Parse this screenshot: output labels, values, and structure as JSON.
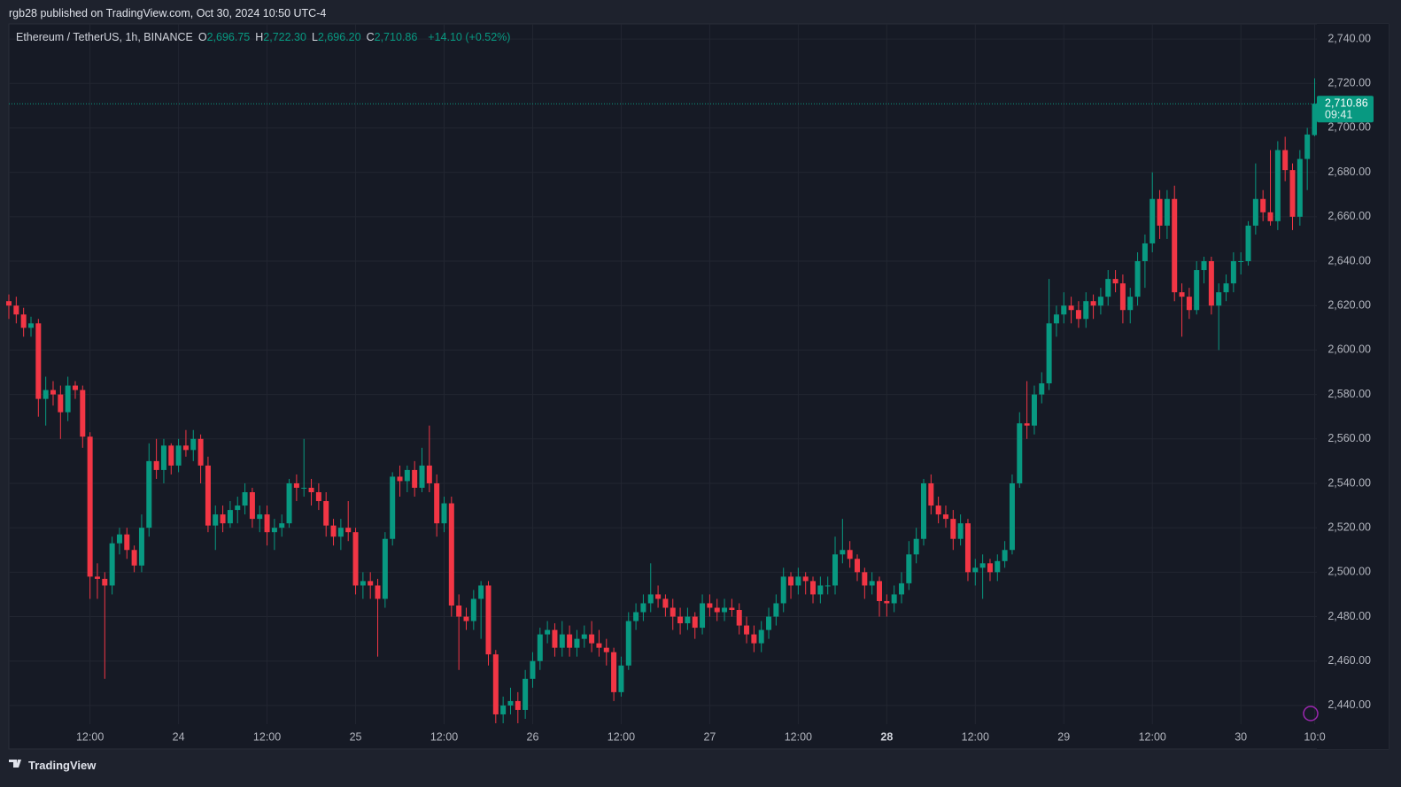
{
  "chart_data": {
    "type": "candlestick",
    "publisher": "rgb28 published on TradingView.com, Oct 30, 2024 10:50 UTC-4",
    "title": "Ethereum / TetherUS, 1h, BINANCE",
    "legend": [
      {
        "key": "O",
        "value": "2,696.75"
      },
      {
        "key": "H",
        "value": "2,722.30"
      },
      {
        "key": "L",
        "value": "2,696.20"
      },
      {
        "key": "C",
        "value": "2,710.86"
      }
    ],
    "change": "+14.10 (+0.52%)",
    "last_price": {
      "value": 2710.86,
      "label": "2,710.86"
    },
    "countdown": "09:41",
    "footer": "TradingView",
    "up_color": "#089981",
    "down_color": "#f23645",
    "grid": true,
    "xlim": [
      0,
      177.3
    ],
    "xticks": [
      {
        "value": 11,
        "label": "12:00"
      },
      {
        "value": 23,
        "label": "24"
      },
      {
        "value": 35,
        "label": "12:00"
      },
      {
        "value": 47,
        "label": "25"
      },
      {
        "value": 59,
        "label": "12:00"
      },
      {
        "value": 71,
        "label": "26"
      },
      {
        "value": 83,
        "label": "12:00"
      },
      {
        "value": 95,
        "label": "27"
      },
      {
        "value": 107,
        "label": "12:00"
      },
      {
        "value": 119,
        "label": "28",
        "bold": true
      },
      {
        "value": 131,
        "label": "12:00"
      },
      {
        "value": 143,
        "label": "29"
      },
      {
        "value": 155,
        "label": "12:00"
      },
      {
        "value": 167,
        "label": "30"
      },
      {
        "value": 177,
        "label": "10:0"
      }
    ],
    "ylim": [
      2431.6,
      2746.8
    ],
    "yticks": [
      {
        "value": 2440,
        "label": "2,440.00"
      },
      {
        "value": 2460,
        "label": "2,460.00"
      },
      {
        "value": 2480,
        "label": "2,480.00"
      },
      {
        "value": 2500,
        "label": "2,500.00"
      },
      {
        "value": 2520,
        "label": "2,520.00"
      },
      {
        "value": 2540,
        "label": "2,540.00"
      },
      {
        "value": 2560,
        "label": "2,560.00"
      },
      {
        "value": 2580,
        "label": "2,580.00"
      },
      {
        "value": 2600,
        "label": "2,600.00"
      },
      {
        "value": 2620,
        "label": "2,620.00"
      },
      {
        "value": 2640,
        "label": "2,640.00"
      },
      {
        "value": 2660,
        "label": "2,660.00"
      },
      {
        "value": 2680,
        "label": "2,680.00"
      },
      {
        "value": 2700,
        "label": "2,700.00"
      },
      {
        "value": 2720,
        "label": "2,720.00"
      },
      {
        "value": 2740,
        "label": "2,740.00"
      }
    ],
    "ohlc": [
      [
        2622,
        2625,
        2614,
        2620
      ],
      [
        2620,
        2624,
        2612,
        2616
      ],
      [
        2616,
        2619,
        2606,
        2610
      ],
      [
        2610,
        2615,
        2606,
        2612
      ],
      [
        2612,
        2614,
        2570,
        2578
      ],
      [
        2578,
        2588,
        2566,
        2582
      ],
      [
        2582,
        2586,
        2575,
        2580
      ],
      [
        2580,
        2584,
        2560,
        2572
      ],
      [
        2572,
        2588,
        2568,
        2584
      ],
      [
        2584,
        2586,
        2578,
        2582
      ],
      [
        2582,
        2584,
        2556,
        2561
      ],
      [
        2561,
        2563,
        2488,
        2498
      ],
      [
        2498,
        2504,
        2488,
        2497
      ],
      [
        2497,
        2500,
        2452,
        2494
      ],
      [
        2494,
        2516,
        2490,
        2513
      ],
      [
        2513,
        2520,
        2508,
        2517
      ],
      [
        2517,
        2520,
        2506,
        2510
      ],
      [
        2510,
        2512,
        2500,
        2503
      ],
      [
        2503,
        2526,
        2500,
        2520
      ],
      [
        2520,
        2558,
        2516,
        2550
      ],
      [
        2550,
        2560,
        2542,
        2546
      ],
      [
        2546,
        2560,
        2540,
        2557
      ],
      [
        2557,
        2558,
        2544,
        2548
      ],
      [
        2548,
        2560,
        2545,
        2557
      ],
      [
        2557,
        2564,
        2552,
        2555
      ],
      [
        2555,
        2564,
        2550,
        2560
      ],
      [
        2560,
        2562,
        2540,
        2548
      ],
      [
        2548,
        2552,
        2518,
        2521
      ],
      [
        2521,
        2530,
        2510,
        2526
      ],
      [
        2526,
        2530,
        2518,
        2522
      ],
      [
        2522,
        2532,
        2520,
        2528
      ],
      [
        2528,
        2534,
        2522,
        2530
      ],
      [
        2530,
        2540,
        2526,
        2536
      ],
      [
        2536,
        2538,
        2520,
        2524
      ],
      [
        2524,
        2530,
        2518,
        2526
      ],
      [
        2526,
        2530,
        2512,
        2518
      ],
      [
        2518,
        2524,
        2510,
        2520
      ],
      [
        2520,
        2526,
        2516,
        2522
      ],
      [
        2522,
        2542,
        2520,
        2540
      ],
      [
        2540,
        2544,
        2532,
        2538
      ],
      [
        2538,
        2560,
        2534,
        2538
      ],
      [
        2538,
        2542,
        2530,
        2536
      ],
      [
        2536,
        2540,
        2528,
        2532
      ],
      [
        2532,
        2536,
        2516,
        2521
      ],
      [
        2521,
        2524,
        2512,
        2516
      ],
      [
        2516,
        2524,
        2510,
        2520
      ],
      [
        2520,
        2532,
        2514,
        2518
      ],
      [
        2518,
        2520,
        2490,
        2494
      ],
      [
        2494,
        2500,
        2488,
        2496
      ],
      [
        2496,
        2500,
        2488,
        2494
      ],
      [
        2494,
        2497,
        2462,
        2488
      ],
      [
        2488,
        2518,
        2484,
        2515
      ],
      [
        2515,
        2545,
        2512,
        2543
      ],
      [
        2543,
        2548,
        2534,
        2541
      ],
      [
        2541,
        2548,
        2536,
        2546
      ],
      [
        2546,
        2550,
        2534,
        2538
      ],
      [
        2538,
        2556,
        2536,
        2548
      ],
      [
        2548,
        2566,
        2536,
        2540
      ],
      [
        2540,
        2544,
        2516,
        2522
      ],
      [
        2522,
        2534,
        2518,
        2531
      ],
      [
        2531,
        2534,
        2480,
        2485
      ],
      [
        2485,
        2490,
        2456,
        2480
      ],
      [
        2480,
        2484,
        2474,
        2478
      ],
      [
        2478,
        2492,
        2474,
        2488
      ],
      [
        2488,
        2496,
        2470,
        2494
      ],
      [
        2494,
        2496,
        2458,
        2463
      ],
      [
        2463,
        2465,
        2432,
        2436
      ],
      [
        2436,
        2444,
        2432,
        2440
      ],
      [
        2440,
        2448,
        2436,
        2442
      ],
      [
        2442,
        2446,
        2432,
        2438
      ],
      [
        2438,
        2456,
        2434,
        2452
      ],
      [
        2452,
        2464,
        2448,
        2460
      ],
      [
        2460,
        2475,
        2456,
        2472
      ],
      [
        2472,
        2478,
        2468,
        2474
      ],
      [
        2474,
        2477,
        2462,
        2466
      ],
      [
        2466,
        2478,
        2462,
        2472
      ],
      [
        2472,
        2476,
        2462,
        2466
      ],
      [
        2466,
        2474,
        2462,
        2470
      ],
      [
        2470,
        2476,
        2466,
        2472
      ],
      [
        2472,
        2478,
        2464,
        2468
      ],
      [
        2468,
        2474,
        2462,
        2466
      ],
      [
        2466,
        2470,
        2458,
        2464
      ],
      [
        2464,
        2466,
        2442,
        2446
      ],
      [
        2446,
        2462,
        2444,
        2458
      ],
      [
        2458,
        2482,
        2456,
        2478
      ],
      [
        2478,
        2486,
        2474,
        2482
      ],
      [
        2482,
        2490,
        2478,
        2486
      ],
      [
        2486,
        2504,
        2482,
        2490
      ],
      [
        2490,
        2494,
        2484,
        2488
      ],
      [
        2488,
        2490,
        2480,
        2484
      ],
      [
        2484,
        2488,
        2474,
        2480
      ],
      [
        2480,
        2484,
        2472,
        2477
      ],
      [
        2477,
        2484,
        2474,
        2480
      ],
      [
        2480,
        2482,
        2470,
        2475
      ],
      [
        2475,
        2490,
        2472,
        2486
      ],
      [
        2486,
        2490,
        2480,
        2484
      ],
      [
        2484,
        2488,
        2478,
        2482
      ],
      [
        2482,
        2488,
        2478,
        2484
      ],
      [
        2484,
        2488,
        2480,
        2483
      ],
      [
        2483,
        2486,
        2472,
        2476
      ],
      [
        2476,
        2480,
        2468,
        2472
      ],
      [
        2472,
        2476,
        2464,
        2468
      ],
      [
        2468,
        2478,
        2464,
        2474
      ],
      [
        2474,
        2484,
        2470,
        2480
      ],
      [
        2480,
        2490,
        2476,
        2486
      ],
      [
        2486,
        2502,
        2482,
        2498
      ],
      [
        2498,
        2500,
        2488,
        2494
      ],
      [
        2494,
        2502,
        2490,
        2498
      ],
      [
        2498,
        2500,
        2490,
        2496
      ],
      [
        2496,
        2498,
        2486,
        2490
      ],
      [
        2490,
        2498,
        2486,
        2494
      ],
      [
        2494,
        2498,
        2490,
        2494
      ],
      [
        2494,
        2516,
        2490,
        2508
      ],
      [
        2508,
        2524,
        2504,
        2510
      ],
      [
        2510,
        2514,
        2502,
        2506
      ],
      [
        2506,
        2508,
        2496,
        2500
      ],
      [
        2500,
        2502,
        2488,
        2494
      ],
      [
        2494,
        2500,
        2490,
        2496
      ],
      [
        2496,
        2498,
        2480,
        2487
      ],
      [
        2487,
        2490,
        2480,
        2486
      ],
      [
        2486,
        2494,
        2482,
        2490
      ],
      [
        2490,
        2500,
        2486,
        2495
      ],
      [
        2495,
        2514,
        2492,
        2508
      ],
      [
        2508,
        2520,
        2504,
        2515
      ],
      [
        2515,
        2542,
        2512,
        2540
      ],
      [
        2540,
        2544,
        2526,
        2530
      ],
      [
        2530,
        2534,
        2522,
        2526
      ],
      [
        2526,
        2530,
        2520,
        2524
      ],
      [
        2524,
        2528,
        2510,
        2515
      ],
      [
        2515,
        2526,
        2512,
        2522
      ],
      [
        2522,
        2524,
        2496,
        2500
      ],
      [
        2500,
        2506,
        2494,
        2502
      ],
      [
        2502,
        2508,
        2488,
        2504
      ],
      [
        2504,
        2506,
        2496,
        2500
      ],
      [
        2500,
        2508,
        2496,
        2505
      ],
      [
        2505,
        2514,
        2502,
        2510
      ],
      [
        2510,
        2544,
        2508,
        2540
      ],
      [
        2540,
        2572,
        2538,
        2567
      ],
      [
        2567,
        2586,
        2560,
        2566
      ],
      [
        2566,
        2584,
        2562,
        2580
      ],
      [
        2580,
        2590,
        2576,
        2585
      ],
      [
        2585,
        2632,
        2582,
        2612
      ],
      [
        2612,
        2620,
        2606,
        2616
      ],
      [
        2616,
        2626,
        2612,
        2620
      ],
      [
        2620,
        2624,
        2612,
        2618
      ],
      [
        2618,
        2622,
        2610,
        2614
      ],
      [
        2614,
        2626,
        2610,
        2622
      ],
      [
        2622,
        2625,
        2614,
        2620
      ],
      [
        2620,
        2628,
        2616,
        2624
      ],
      [
        2624,
        2636,
        2620,
        2632
      ],
      [
        2632,
        2636,
        2626,
        2630
      ],
      [
        2630,
        2634,
        2612,
        2618
      ],
      [
        2618,
        2628,
        2612,
        2624
      ],
      [
        2624,
        2644,
        2620,
        2640
      ],
      [
        2640,
        2652,
        2628,
        2648
      ],
      [
        2648,
        2680,
        2644,
        2668
      ],
      [
        2668,
        2672,
        2650,
        2656
      ],
      [
        2656,
        2672,
        2650,
        2668
      ],
      [
        2668,
        2674,
        2622,
        2626
      ],
      [
        2626,
        2630,
        2606,
        2624
      ],
      [
        2624,
        2628,
        2614,
        2618
      ],
      [
        2618,
        2640,
        2616,
        2636
      ],
      [
        2636,
        2642,
        2630,
        2640
      ],
      [
        2640,
        2642,
        2616,
        2620
      ],
      [
        2620,
        2630,
        2600,
        2626
      ],
      [
        2626,
        2634,
        2622,
        2630
      ],
      [
        2630,
        2644,
        2626,
        2640
      ],
      [
        2640,
        2644,
        2634,
        2640
      ],
      [
        2640,
        2658,
        2638,
        2656
      ],
      [
        2656,
        2684,
        2652,
        2668
      ],
      [
        2668,
        2672,
        2658,
        2662
      ],
      [
        2662,
        2690,
        2656,
        2658
      ],
      [
        2658,
        2694,
        2654,
        2690
      ],
      [
        2690,
        2696,
        2676,
        2681
      ],
      [
        2681,
        2684,
        2654,
        2660
      ],
      [
        2660,
        2690,
        2656,
        2686
      ],
      [
        2686,
        2700,
        2672,
        2697
      ],
      [
        2696.75,
        2722.3,
        2696.2,
        2710.86
      ]
    ]
  }
}
